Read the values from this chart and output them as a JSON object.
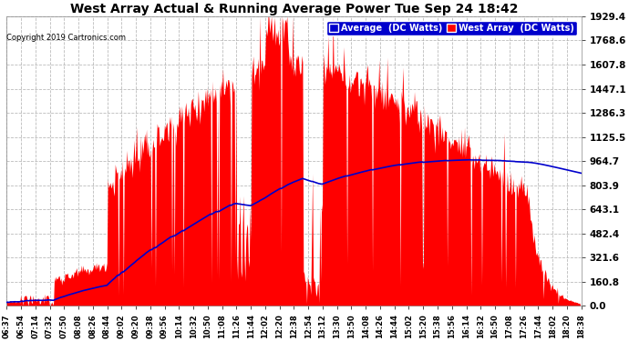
{
  "title": "West Array Actual & Running Average Power Tue Sep 24 18:42",
  "copyright": "Copyright 2019 Cartronics.com",
  "legend_avg": "Average  (DC Watts)",
  "legend_west": "West Array  (DC Watts)",
  "yticks": [
    0.0,
    160.8,
    321.6,
    482.4,
    643.1,
    803.9,
    964.7,
    1125.5,
    1286.3,
    1447.1,
    1607.8,
    1768.6,
    1929.4
  ],
  "ymax": 1929.4,
  "bg_color": "#ffffff",
  "plot_bg_color": "#ffffff",
  "grid_color": "#aaaaaa",
  "red_color": "#ff0000",
  "blue_color": "#0000cc",
  "title_color": "#000000",
  "tick_color": "#000000",
  "legend_avg_bg": "#0000cc",
  "legend_west_bg": "#ff0000",
  "xtick_labels": [
    "06:37",
    "06:54",
    "07:14",
    "07:32",
    "07:50",
    "08:08",
    "08:26",
    "08:44",
    "09:02",
    "09:20",
    "09:38",
    "09:56",
    "10:14",
    "10:32",
    "10:50",
    "11:08",
    "11:26",
    "11:44",
    "12:02",
    "12:20",
    "12:38",
    "12:54",
    "13:12",
    "13:30",
    "13:50",
    "14:08",
    "14:26",
    "14:44",
    "15:02",
    "15:20",
    "15:38",
    "15:56",
    "16:14",
    "16:32",
    "16:50",
    "17:08",
    "17:26",
    "17:44",
    "18:02",
    "18:20",
    "18:38"
  ],
  "n_points": 700,
  "seed": 12345
}
